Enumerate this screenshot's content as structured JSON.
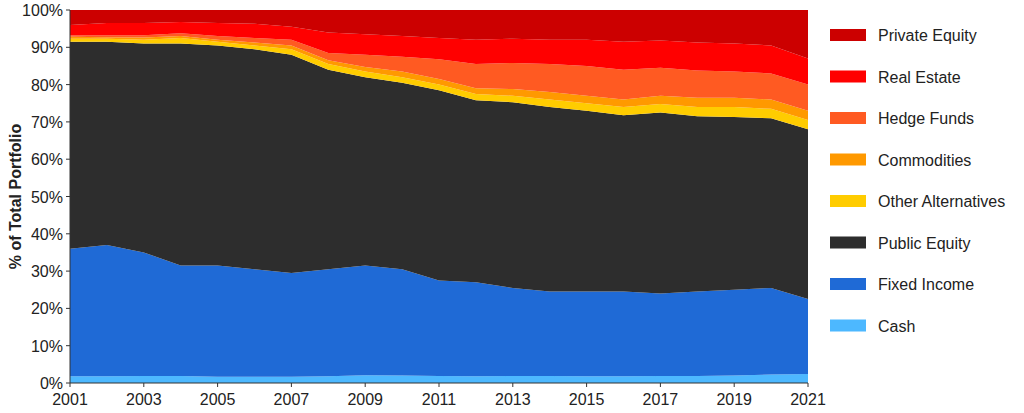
{
  "chart_data": {
    "type": "area",
    "stacked": true,
    "y_label": "% of Total Portfolio",
    "x": [
      2001,
      2002,
      2003,
      2004,
      2005,
      2006,
      2007,
      2008,
      2009,
      2010,
      2011,
      2012,
      2013,
      2014,
      2015,
      2016,
      2017,
      2018,
      2019,
      2020,
      2021
    ],
    "xlim": [
      2001,
      2021
    ],
    "xticks": [
      2001,
      2003,
      2005,
      2007,
      2009,
      2011,
      2013,
      2015,
      2017,
      2019,
      2021
    ],
    "ylim": [
      0,
      100
    ],
    "yticks": [
      {
        "value": 0,
        "label": "0%"
      },
      {
        "value": 10,
        "label": "10%"
      },
      {
        "value": 20,
        "label": "20%"
      },
      {
        "value": 30,
        "label": "30%"
      },
      {
        "value": 40,
        "label": "40%"
      },
      {
        "value": 50,
        "label": "50%"
      },
      {
        "value": 60,
        "label": "60%"
      },
      {
        "value": 70,
        "label": "70%"
      },
      {
        "value": 80,
        "label": "80%"
      },
      {
        "value": 90,
        "label": "90%"
      },
      {
        "value": 100,
        "label": "100%"
      }
    ],
    "grid": false,
    "legend": "right",
    "series": [
      {
        "name": "Cash",
        "color": "#4db8ff",
        "values": [
          1.8,
          1.8,
          1.9,
          1.9,
          1.7,
          1.7,
          1.7,
          1.8,
          2.1,
          2.0,
          1.9,
          1.8,
          1.9,
          1.9,
          1.8,
          1.8,
          1.9,
          1.9,
          2.0,
          2.3,
          2.4
        ]
      },
      {
        "name": "Fixed Income",
        "color": "#1f6ad6",
        "values": [
          34.2,
          35.2,
          33.1,
          29.6,
          29.8,
          28.8,
          27.8,
          28.7,
          29.4,
          28.5,
          25.6,
          25.2,
          23.6,
          22.6,
          22.7,
          22.7,
          22.1,
          22.6,
          23.0,
          23.2,
          20.1
        ]
      },
      {
        "name": "Public Equity",
        "color": "#2d2d2d",
        "values": [
          55.5,
          54.5,
          56,
          59.5,
          59,
          59,
          58.5,
          53.5,
          50.5,
          50,
          51,
          48.8,
          49.8,
          49.5,
          48.5,
          47.3,
          48.5,
          47,
          46.3,
          45.5,
          45.5
        ]
      },
      {
        "name": "Other Alternatives",
        "color": "#ffcc00",
        "values": [
          0.8,
          0.8,
          1,
          1.5,
          1,
          1,
          1.5,
          1.5,
          1.5,
          1.5,
          1.5,
          1.7,
          1.7,
          2,
          2,
          2.2,
          2.3,
          2.5,
          2.7,
          2.5,
          2.5
        ]
      },
      {
        "name": "Commodities",
        "color": "#ff9900",
        "values": [
          0.5,
          0.4,
          0.6,
          0.5,
          0.5,
          0.8,
          1,
          1,
          1.2,
          1.5,
          1.5,
          1.5,
          1.8,
          2,
          2,
          2,
          2.2,
          2.5,
          2.5,
          2.5,
          2.5
        ]
      },
      {
        "name": "Hedge Funds",
        "color": "#ff5a22",
        "values": [
          0.4,
          0.5,
          0.6,
          0.8,
          1,
          1.2,
          1.5,
          2,
          3.3,
          4,
          5.3,
          6.5,
          7,
          7.5,
          8,
          8,
          7.5,
          7.3,
          7,
          7,
          7
        ]
      },
      {
        "name": "Real Estate",
        "color": "#ff0000",
        "values": [
          2.8,
          3.3,
          3.3,
          3,
          3.5,
          3.8,
          3.5,
          5.5,
          5.5,
          5.5,
          5.7,
          6.5,
          6.5,
          6.5,
          7,
          7.5,
          7.3,
          7.5,
          7.5,
          7.5,
          7
        ]
      },
      {
        "name": "Private Equity",
        "color": "#cc0000",
        "values": [
          4,
          3.5,
          3.5,
          3.2,
          3.5,
          3.7,
          4.5,
          6,
          6.5,
          7,
          7.5,
          8,
          7.7,
          8,
          8,
          8.5,
          8.2,
          8.7,
          9,
          9.5,
          13
        ]
      }
    ]
  }
}
